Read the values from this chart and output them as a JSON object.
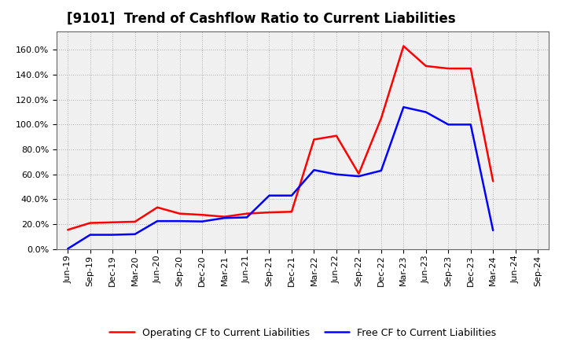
{
  "title": "[9101]  Trend of Cashflow Ratio to Current Liabilities",
  "x_labels": [
    "Jun-19",
    "Sep-19",
    "Dec-19",
    "Mar-20",
    "Jun-20",
    "Sep-20",
    "Dec-20",
    "Mar-21",
    "Jun-21",
    "Sep-21",
    "Dec-21",
    "Mar-22",
    "Jun-22",
    "Sep-22",
    "Dec-22",
    "Mar-23",
    "Jun-23",
    "Sep-23",
    "Dec-23",
    "Mar-24",
    "Jun-24",
    "Sep-24"
  ],
  "operating_cf": [
    0.155,
    0.21,
    0.215,
    0.22,
    0.335,
    0.285,
    0.275,
    0.26,
    0.285,
    0.295,
    0.3,
    0.88,
    0.91,
    0.605,
    1.05,
    1.63,
    1.47,
    1.45,
    1.45,
    0.545,
    null,
    null
  ],
  "free_cf": [
    0.003,
    0.115,
    0.115,
    0.12,
    0.225,
    0.225,
    0.222,
    0.25,
    0.255,
    0.43,
    0.43,
    0.635,
    0.6,
    0.585,
    0.63,
    1.14,
    1.1,
    1.0,
    1.0,
    0.15,
    null,
    null
  ],
  "operating_color": "#ff0000",
  "free_color": "#0000ff",
  "background_color": "#ffffff",
  "plot_bg_color": "#f0f0f0",
  "grid_color": "#aaaaaa",
  "title_fontsize": 12,
  "legend_fontsize": 9,
  "tick_fontsize": 8
}
